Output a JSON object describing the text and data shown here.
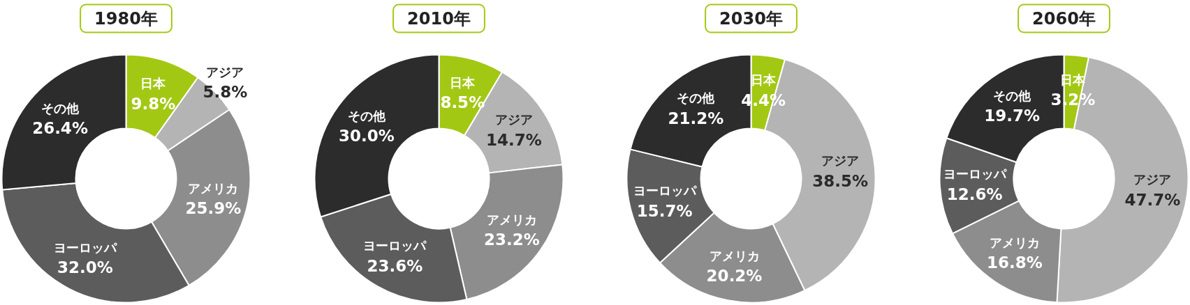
{
  "chart_data": [
    {
      "type": "donut",
      "title": "1980年",
      "categories": [
        "日本",
        "アジア",
        "アメリカ",
        "ヨーロッパ",
        "その他"
      ],
      "values": [
        9.8,
        5.8,
        25.9,
        32.0,
        26.4
      ],
      "value_labels": [
        "9.8%",
        "5.8%",
        "25.9%",
        "32.0%",
        "26.4%"
      ],
      "colors": [
        "#a3c814",
        "#b4b4b4",
        "#8d8d8d",
        "#5c5c5c",
        "#2c2c2c"
      ]
    },
    {
      "type": "donut",
      "title": "2010年",
      "categories": [
        "日本",
        "アジア",
        "アメリカ",
        "ヨーロッパ",
        "その他"
      ],
      "values": [
        8.5,
        14.7,
        23.2,
        23.6,
        30.0
      ],
      "value_labels": [
        "8.5%",
        "14.7%",
        "23.2%",
        "23.6%",
        "30.0%"
      ],
      "colors": [
        "#a3c814",
        "#b4b4b4",
        "#8d8d8d",
        "#5c5c5c",
        "#2c2c2c"
      ]
    },
    {
      "type": "donut",
      "title": "2030年",
      "categories": [
        "日本",
        "アジア",
        "アメリカ",
        "ヨーロッパ",
        "その他"
      ],
      "values": [
        4.4,
        38.5,
        20.2,
        15.7,
        21.2
      ],
      "value_labels": [
        "4.4%",
        "38.5%",
        "20.2%",
        "15.7%",
        "21.2%"
      ],
      "colors": [
        "#a3c814",
        "#b4b4b4",
        "#8d8d8d",
        "#5c5c5c",
        "#2c2c2c"
      ]
    },
    {
      "type": "donut",
      "title": "2060年",
      "categories": [
        "日本",
        "アジア",
        "アメリカ",
        "ヨーロッパ",
        "その他"
      ],
      "values": [
        3.2,
        47.7,
        16.8,
        12.6,
        19.7
      ],
      "value_labels": [
        "3.2%",
        "47.7%",
        "16.8%",
        "12.6%",
        "19.7%"
      ],
      "colors": [
        "#a3c814",
        "#b4b4b4",
        "#8d8d8d",
        "#5c5c5c",
        "#2c2c2c"
      ]
    }
  ]
}
